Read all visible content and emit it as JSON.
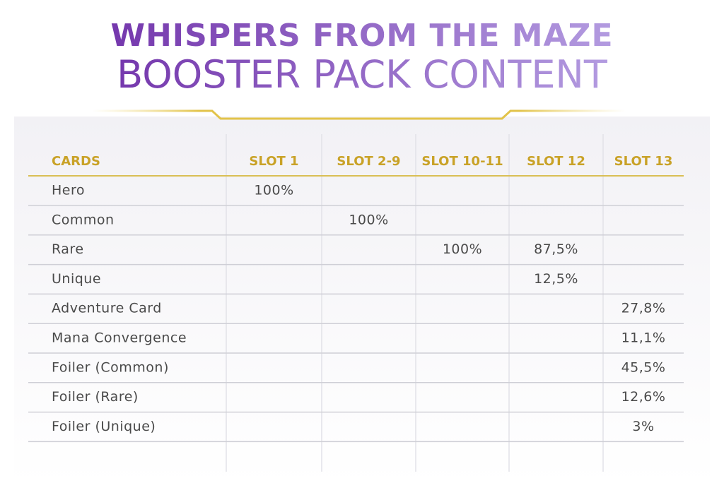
{
  "header": {
    "title_line1": "WHISPERS FROM THE MAZE",
    "title_line2": "BOOSTER PACK CONTENT"
  },
  "table": {
    "columns": [
      "CARDS",
      "SLOT 1",
      "SLOT 2-9",
      "SLOT 10-11",
      "SLOT 12",
      "SLOT 13"
    ],
    "rows": [
      [
        "Hero",
        "100%",
        null,
        null,
        null,
        null
      ],
      [
        "Common",
        null,
        "100%",
        null,
        null,
        null
      ],
      [
        "Rare",
        null,
        null,
        "100%",
        "87,5%",
        null
      ],
      [
        "Unique",
        null,
        null,
        null,
        "12,5%",
        null
      ],
      [
        "Adventure Card",
        null,
        null,
        null,
        null,
        "27,8%"
      ],
      [
        "Mana Convergence",
        null,
        null,
        null,
        null,
        "11,1%"
      ],
      [
        "Foiler (Common)",
        null,
        null,
        null,
        null,
        "45,5%"
      ],
      [
        "Foiler (Rare)",
        null,
        null,
        null,
        null,
        "12,6%"
      ],
      [
        "Foiler (Unique)",
        null,
        null,
        null,
        null,
        "3%"
      ]
    ]
  }
}
